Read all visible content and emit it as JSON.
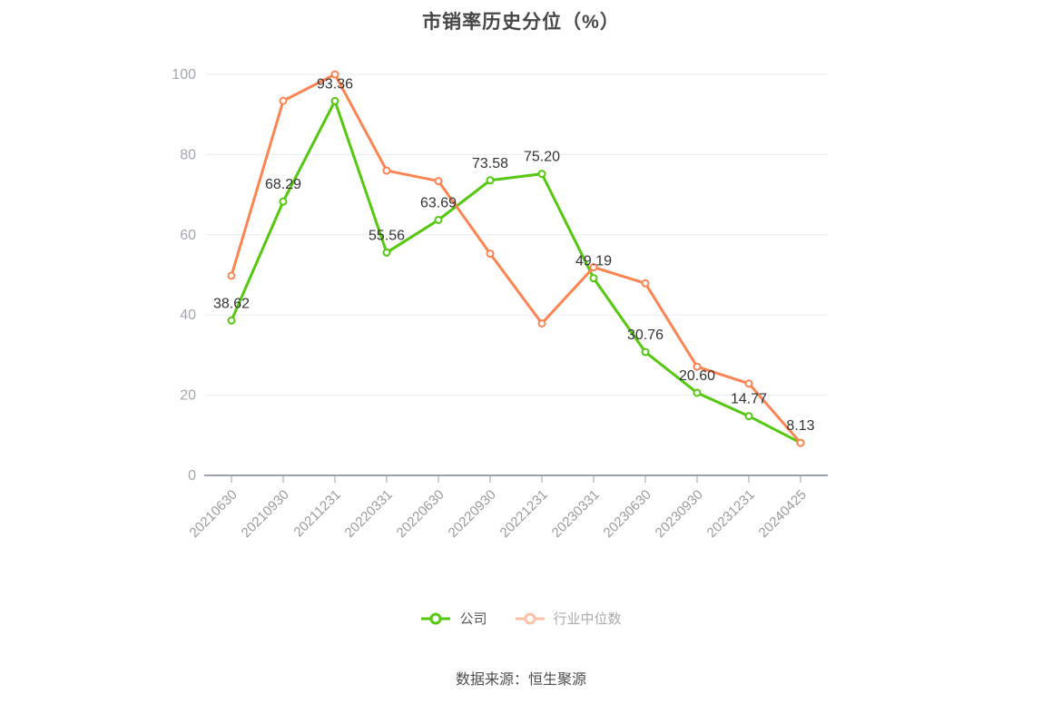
{
  "chart_data": {
    "type": "line",
    "title": "市销率历史分位（%）",
    "categories": [
      "20210630",
      "20210930",
      "20211231",
      "20220331",
      "20220630",
      "20220930",
      "20221231",
      "20230331",
      "20230630",
      "20230930",
      "20231231",
      "20240425"
    ],
    "series": [
      {
        "name": "公司",
        "color": "#54c80e",
        "values": [
          38.62,
          68.29,
          93.36,
          55.56,
          63.69,
          73.58,
          75.2,
          49.19,
          30.76,
          20.6,
          14.77,
          8.13
        ],
        "labels": [
          "38.62",
          "68.29",
          "93.36",
          "55.56",
          "63.69",
          "73.58",
          "75.20",
          "49.19",
          "30.76",
          "20.60",
          "14.77",
          "8.13"
        ],
        "show_labels": true
      },
      {
        "name": "行业中位数",
        "color": "#fc8452",
        "values": [
          49.8,
          93.4,
          100.0,
          76.0,
          73.4,
          55.3,
          37.9,
          51.9,
          47.9,
          27.1,
          22.9,
          8.1
        ],
        "labels": [],
        "show_labels": false
      }
    ],
    "xlabel": "",
    "ylabel": "",
    "ylim": [
      0,
      100
    ],
    "y_ticks": [
      0,
      20,
      40,
      60,
      80,
      100
    ],
    "grid": true,
    "legend_position": "bottom"
  },
  "footer": {
    "source": "数据来源：恒生聚源"
  }
}
